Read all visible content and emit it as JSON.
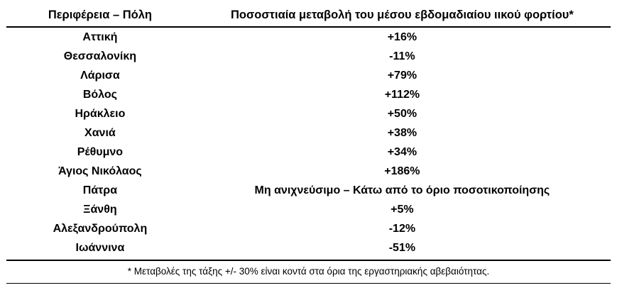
{
  "table": {
    "col1_header": "Περιφέρεια – Πόλη",
    "col2_header": "Ποσοστιαία μεταβολή του μέσου εβδομαδιαίου ιικού φορτίου*",
    "rows": [
      {
        "region": "Αττική",
        "change": "+16%"
      },
      {
        "region": "Θεσσαλονίκη",
        "change": "-11%"
      },
      {
        "region": "Λάρισα",
        "change": "+79%"
      },
      {
        "region": "Βόλος",
        "change": "+112%"
      },
      {
        "region": "Ηράκλειο",
        "change": "+50%"
      },
      {
        "region": "Χανιά",
        "change": "+38%"
      },
      {
        "region": "Ρέθυμνο",
        "change": "+34%"
      },
      {
        "region": "Άγιος Νικόλαος",
        "change": "+186%"
      },
      {
        "region": "Πάτρα",
        "change": "Μη ανιχνεύσιμο – Κάτω από το όριο ποσοτικοποίησης"
      },
      {
        "region": "Ξάνθη",
        "change": "+5%"
      },
      {
        "region": "Αλεξανδρούπολη",
        "change": "-12%"
      },
      {
        "region": "Ιωάννινα",
        "change": "-51%"
      }
    ],
    "footnote": "* Μεταβολές της τάξης +/- 30% είναι κοντά στα όρια της εργαστηριακής αβεβαιότητας."
  }
}
